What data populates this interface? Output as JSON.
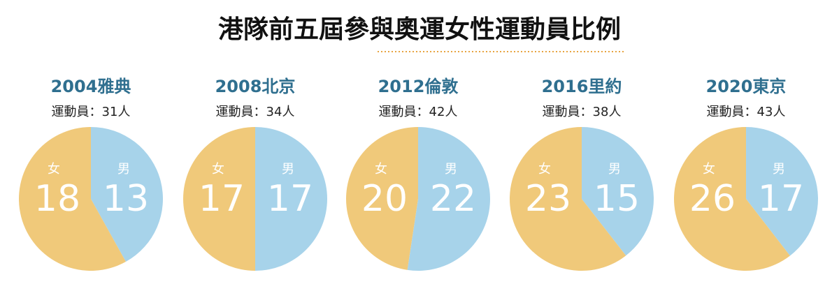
{
  "title": "港隊前五屆參與奧運女性運動員比例",
  "chart_data": [
    {
      "type": "pie",
      "title": "2004雅典",
      "subtitle": "運動員：31人",
      "categories": [
        "女",
        "男"
      ],
      "values": [
        18,
        13
      ],
      "colors": [
        "#f0c97a",
        "#a7d3ea"
      ]
    },
    {
      "type": "pie",
      "title": "2008北京",
      "subtitle": "運動員：34人",
      "categories": [
        "女",
        "男"
      ],
      "values": [
        17,
        17
      ],
      "colors": [
        "#f0c97a",
        "#a7d3ea"
      ]
    },
    {
      "type": "pie",
      "title": "2012倫敦",
      "subtitle": "運動員：42人",
      "categories": [
        "女",
        "男"
      ],
      "values": [
        20,
        22
      ],
      "colors": [
        "#f0c97a",
        "#a7d3ea"
      ]
    },
    {
      "type": "pie",
      "title": "2016里約",
      "subtitle": "運動員：38人",
      "categories": [
        "女",
        "男"
      ],
      "values": [
        23,
        15
      ],
      "colors": [
        "#f0c97a",
        "#a7d3ea"
      ]
    },
    {
      "type": "pie",
      "title": "2020東京",
      "subtitle": "運動員：43人",
      "categories": [
        "女",
        "男"
      ],
      "values": [
        26,
        17
      ],
      "colors": [
        "#f0c97a",
        "#a7d3ea"
      ]
    }
  ]
}
